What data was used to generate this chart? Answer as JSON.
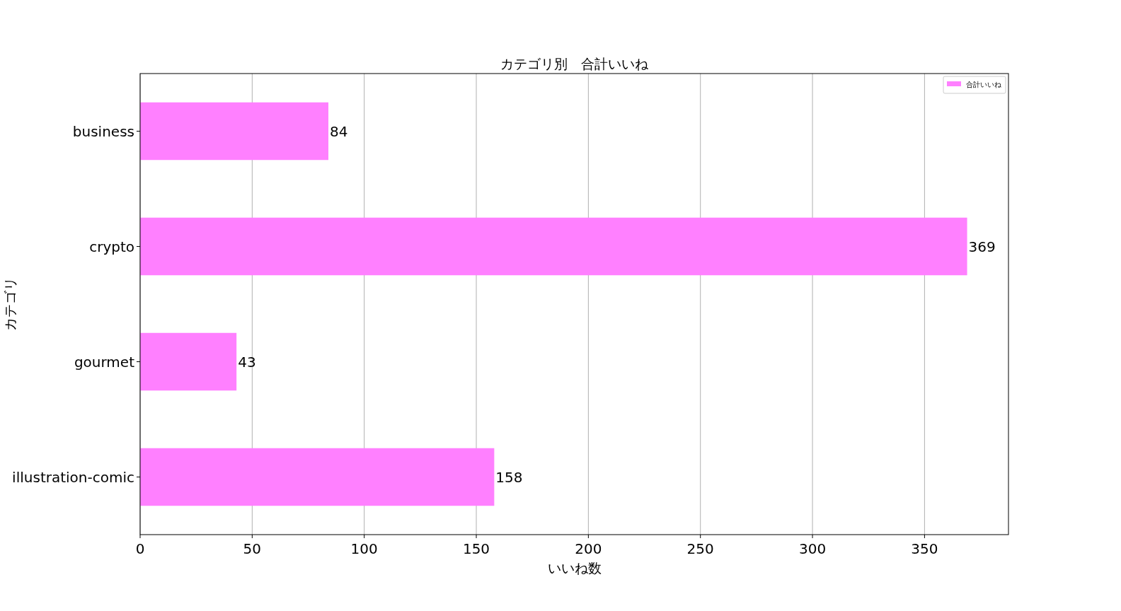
{
  "chart_data": {
    "type": "bar",
    "orientation": "horizontal",
    "title": "カテゴリ別　合計いいね",
    "xlabel": "いいね数",
    "ylabel": "カテゴリ",
    "categories": [
      "business",
      "crypto",
      "gourmet",
      "illustration-comic"
    ],
    "series": [
      {
        "name": "合計いいね",
        "color": "#ff80ff",
        "values": [
          84,
          369,
          43,
          158
        ]
      }
    ],
    "xlim": [
      0,
      387.45
    ],
    "xticks": [
      0,
      50,
      100,
      150,
      200,
      250,
      300,
      350
    ],
    "grid": "x",
    "legend": "top right",
    "data_labels": true
  }
}
